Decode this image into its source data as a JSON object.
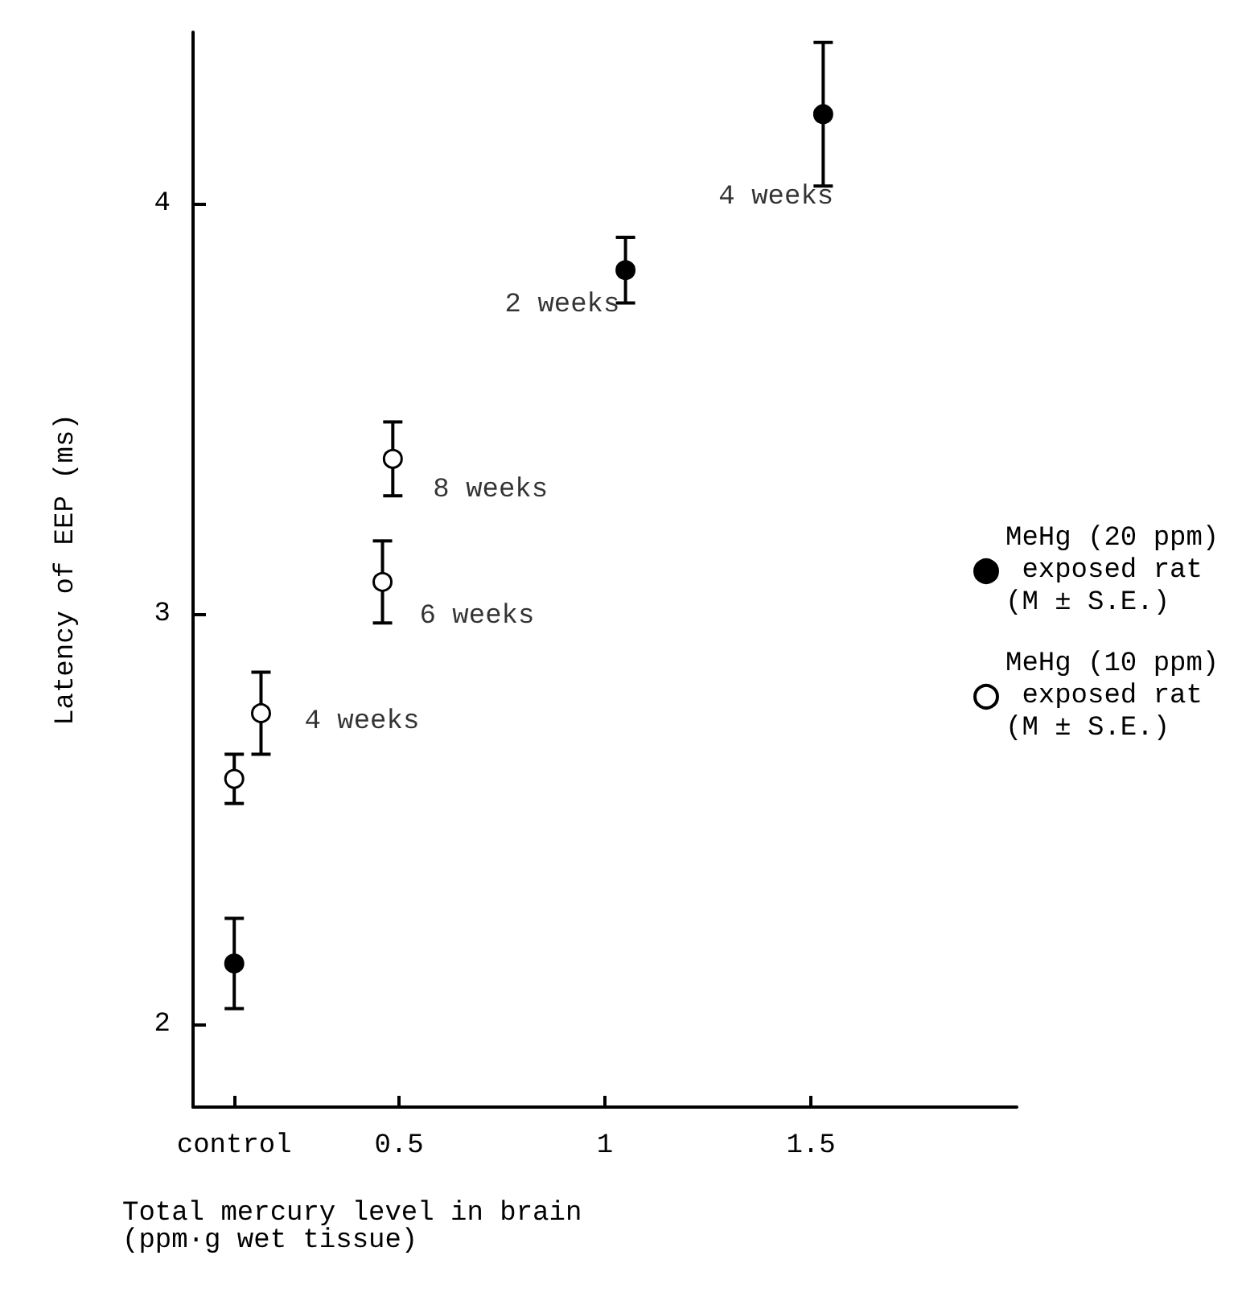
{
  "chart_data": {
    "type": "scatter",
    "xlabel": "Total mercury level in brain\n(ppm·g wet tissue)",
    "ylabel": "Latency of EEP (ms)",
    "xlim": [
      0,
      2
    ],
    "xticks": [
      {
        "value": 0.1,
        "label": "control"
      },
      0.5,
      1,
      1.5
    ],
    "ylim": [
      1.8,
      4.42
    ],
    "yticks": [
      2,
      3,
      4
    ],
    "series": [
      {
        "name": "MeHg (20 ppm) exposed rat (M ± S.E.)",
        "color": "#000000",
        "x": [
          0.1,
          1.05,
          1.53
        ],
        "values": [
          2.15,
          3.84,
          4.22
        ],
        "errors": [
          0.11,
          0.08,
          0.175
        ]
      },
      {
        "name": "MeHg (10 ppm) exposed rat (M ± S.E.)",
        "color": "#ffffff",
        "x": [
          0.1,
          0.165,
          0.46,
          0.485
        ],
        "values": [
          2.6,
          2.76,
          3.08,
          3.38
        ],
        "errors": [
          0.06,
          0.1,
          0.1,
          0.09
        ]
      }
    ],
    "annotations": [
      {
        "text": "2 weeks",
        "x": 1.05,
        "y": 3.84
      },
      {
        "text": "4 weeks",
        "x": 1.53,
        "y": 4.22
      },
      {
        "text": "4 weeks",
        "x": 0.165,
        "y": 2.76
      },
      {
        "text": "6 weeks",
        "x": 0.46,
        "y": 3.08
      },
      {
        "text": "8 weeks",
        "x": 0.485,
        "y": 3.38
      }
    ],
    "marker": "circle",
    "grid": false,
    "legend": "right"
  }
}
